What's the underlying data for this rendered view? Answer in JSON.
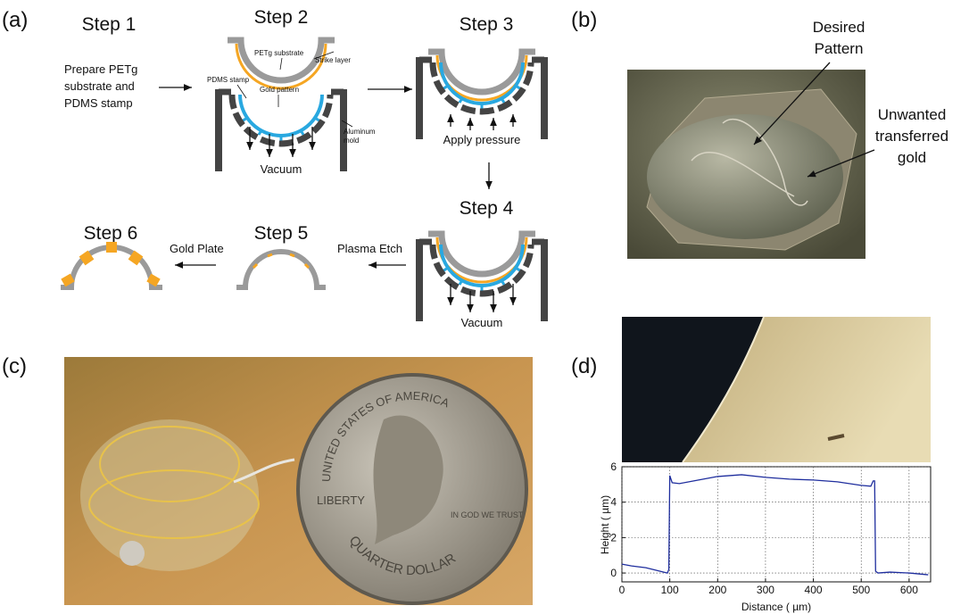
{
  "figure": {
    "panel_labels": [
      "(a)",
      "(b)",
      "(c)",
      "(d)"
    ],
    "steps": [
      "Step 1",
      "Step 2",
      "Step 3",
      "Step 4",
      "Step 5",
      "Step 6"
    ],
    "step1_text": [
      "Prepare PETg",
      "substrate and",
      "PDMS stamp"
    ],
    "step2_labels": {
      "substrate": "PETg substrate",
      "strike": "Strike layer",
      "stamp": "PDMS stamp",
      "gold": "Gold pattern",
      "mold": [
        "Aluminum",
        "mold"
      ],
      "vacuum": "Vacuum"
    },
    "step3_label": "Apply pressure",
    "step4_label": "Vacuum",
    "step5_action": "Plasma Etch",
    "step6_action": "Gold Plate",
    "panel_b": {
      "desired": [
        "Desired",
        "Pattern"
      ],
      "unwanted": [
        "Unwanted",
        "transferred",
        "gold"
      ]
    },
    "coin": [
      "UNITED STATES OF AMERICA",
      "LIBERTY",
      "IN GOD WE TRUST",
      "QUARTER DOLLAR"
    ]
  },
  "chart_data": {
    "type": "line",
    "x_label": "Distance ( µm)",
    "y_label": "Height ( µm)",
    "x": [
      0,
      20,
      50,
      80,
      95,
      98,
      100,
      105,
      120,
      150,
      200,
      250,
      300,
      350,
      400,
      450,
      500,
      520,
      525,
      528,
      530,
      535,
      560,
      600,
      640
    ],
    "values": [
      0.5,
      0.4,
      0.3,
      0.1,
      0,
      0.2,
      5.5,
      5.1,
      5.05,
      5.2,
      5.45,
      5.55,
      5.4,
      5.3,
      5.25,
      5.15,
      4.95,
      4.9,
      5.2,
      5.2,
      0.1,
      0,
      0.05,
      0,
      -0.1
    ],
    "color": "#1f2e9e",
    "xlim": [
      0,
      645
    ],
    "ylim": [
      -0.5,
      6
    ],
    "xticks": [
      0,
      100,
      200,
      300,
      400,
      500,
      600
    ],
    "yticks": [
      0,
      2,
      4,
      6
    ],
    "grid": true
  }
}
